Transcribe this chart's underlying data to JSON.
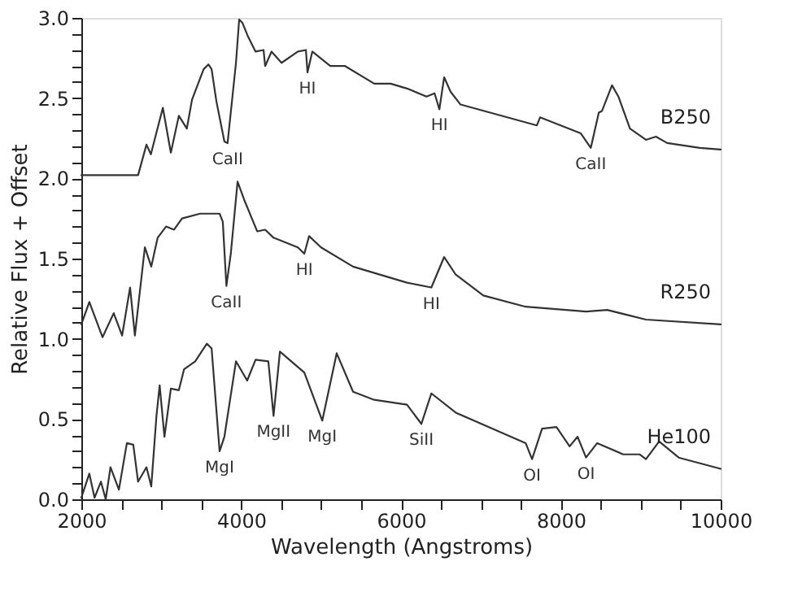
{
  "chart_data": {
    "type": "line",
    "xlabel": "Wavelength (Angstroms)",
    "ylabel": "Relative Flux + Offset",
    "xlim": [
      2000,
      10000
    ],
    "ylim": [
      0,
      3
    ],
    "xticks": [
      2000,
      {
        "value": 2500,
        "label": null
      },
      {
        "value": 3000,
        "label": null
      },
      {
        "value": 3500,
        "label": null
      },
      4000,
      {
        "value": 4500,
        "label": null
      },
      {
        "value": 5000,
        "label": null
      },
      {
        "value": 5500,
        "label": null
      },
      6000,
      {
        "value": 6500,
        "label": null
      },
      {
        "value": 7000,
        "label": null
      },
      {
        "value": 7500,
        "label": null
      },
      8000,
      {
        "value": 8500,
        "label": null
      },
      {
        "value": 9000,
        "label": null
      },
      {
        "value": 9500,
        "label": null
      },
      10000
    ],
    "yticks": [
      {
        "value": 0,
        "label": "0.0"
      },
      {
        "value": 0.1,
        "label": null
      },
      {
        "value": 0.2,
        "label": null
      },
      {
        "value": 0.3,
        "label": null
      },
      {
        "value": 0.4,
        "label": null
      },
      0.5,
      {
        "value": 0.6,
        "label": null
      },
      {
        "value": 0.7,
        "label": null
      },
      {
        "value": 0.8,
        "label": null
      },
      {
        "value": 0.9,
        "label": null
      },
      {
        "value": 1,
        "label": "1.0"
      },
      {
        "value": 1.1,
        "label": null
      },
      {
        "value": 1.2,
        "label": null
      },
      {
        "value": 1.3,
        "label": null
      },
      {
        "value": 1.4,
        "label": null
      },
      1.5,
      {
        "value": 1.6,
        "label": null
      },
      {
        "value": 1.7,
        "label": null
      },
      {
        "value": 1.8,
        "label": null
      },
      {
        "value": 1.9,
        "label": null
      },
      {
        "value": 2,
        "label": "2.0"
      },
      {
        "value": 2.1,
        "label": null
      },
      {
        "value": 2.2,
        "label": null
      },
      {
        "value": 2.3,
        "label": null
      },
      {
        "value": 2.4,
        "label": null
      },
      2.5,
      {
        "value": 2.6,
        "label": null
      },
      {
        "value": 2.7,
        "label": null
      },
      {
        "value": 2.8,
        "label": null
      },
      {
        "value": 2.9,
        "label": null
      },
      {
        "value": 3,
        "label": "3.0"
      }
    ],
    "grid": false,
    "marker": "none",
    "line_style": "solid",
    "series": [
      {
        "name": "B250",
        "color": "#333333",
        "x": [
          2000,
          2710,
          2815,
          2870,
          3020,
          3120,
          3220,
          3320,
          3385,
          3530,
          3590,
          3630,
          3690,
          3790,
          3830,
          3935,
          3975,
          4015,
          4080,
          4180,
          4280,
          4300,
          4380,
          4505,
          4710,
          4810,
          4830,
          4890,
          5115,
          5300,
          5665,
          5870,
          6075,
          6320,
          6420,
          6480,
          6540,
          6620,
          6745,
          7700,
          7740,
          8250,
          8375,
          8475,
          8515,
          8640,
          8720,
          8865,
          9065,
          9190,
          9330,
          9740,
          10000
        ],
        "values": [
          2.02,
          2.02,
          2.21,
          2.15,
          2.44,
          2.16,
          2.39,
          2.31,
          2.49,
          2.68,
          2.71,
          2.68,
          2.48,
          2.23,
          2.22,
          2.72,
          2.99,
          2.97,
          2.89,
          2.79,
          2.8,
          2.7,
          2.79,
          2.72,
          2.79,
          2.8,
          2.66,
          2.79,
          2.7,
          2.7,
          2.59,
          2.59,
          2.56,
          2.51,
          2.53,
          2.43,
          2.63,
          2.54,
          2.46,
          2.33,
          2.38,
          2.28,
          2.19,
          2.41,
          2.42,
          2.58,
          2.51,
          2.31,
          2.24,
          2.26,
          2.22,
          2.19,
          2.18
        ]
      },
      {
        "name": "R250",
        "color": "#333333",
        "x": [
          2000,
          2100,
          2265,
          2405,
          2510,
          2610,
          2670,
          2795,
          2875,
          2955,
          3060,
          3160,
          3260,
          3485,
          3730,
          3770,
          3815,
          3870,
          3955,
          4035,
          4200,
          4300,
          4405,
          4710,
          4790,
          4850,
          5000,
          5400,
          6075,
          6380,
          6540,
          6685,
          7030,
          7560,
          8315,
          8580,
          9065,
          10000
        ],
        "values": [
          1.09,
          1.23,
          1.01,
          1.16,
          1.02,
          1.32,
          1.02,
          1.57,
          1.45,
          1.63,
          1.7,
          1.68,
          1.75,
          1.78,
          1.78,
          1.73,
          1.33,
          1.53,
          1.98,
          1.87,
          1.67,
          1.68,
          1.63,
          1.57,
          1.53,
          1.64,
          1.57,
          1.45,
          1.35,
          1.32,
          1.51,
          1.4,
          1.27,
          1.2,
          1.17,
          1.18,
          1.12,
          1.09
        ]
      },
      {
        "name": "He100",
        "color": "#333333",
        "x": [
          2000,
          2100,
          2165,
          2245,
          2305,
          2365,
          2470,
          2570,
          2650,
          2710,
          2815,
          2875,
          2940,
          2980,
          3040,
          3120,
          3220,
          3285,
          3425,
          3570,
          3630,
          3730,
          3790,
          3935,
          4075,
          4180,
          4340,
          4405,
          4485,
          4790,
          5015,
          5195,
          5400,
          5665,
          6075,
          6255,
          6380,
          6685,
          7560,
          7640,
          7765,
          7945,
          8110,
          8210,
          8315,
          8455,
          8780,
          8985,
          9065,
          9230,
          9475,
          10000
        ],
        "values": [
          0.01,
          0.16,
          0.01,
          0.11,
          0.0,
          0.2,
          0.06,
          0.35,
          0.34,
          0.11,
          0.2,
          0.08,
          0.52,
          0.71,
          0.39,
          0.69,
          0.68,
          0.81,
          0.86,
          0.97,
          0.94,
          0.3,
          0.39,
          0.86,
          0.74,
          0.87,
          0.86,
          0.52,
          0.92,
          0.79,
          0.49,
          0.91,
          0.67,
          0.62,
          0.59,
          0.47,
          0.66,
          0.54,
          0.35,
          0.25,
          0.44,
          0.45,
          0.33,
          0.39,
          0.26,
          0.35,
          0.28,
          0.28,
          0.25,
          0.36,
          0.26,
          0.19
        ]
      }
    ],
    "annotations": [
      {
        "text": "CaII",
        "x": 3830,
        "y": 2.22
      },
      {
        "text": "HI",
        "x": 4830,
        "y": 2.66
      },
      {
        "text": "HI",
        "x": 6480,
        "y": 2.43
      },
      {
        "text": "CaII",
        "x": 8375,
        "y": 2.19
      },
      {
        "text": "CaII",
        "x": 3815,
        "y": 1.33
      },
      {
        "text": "HI",
        "x": 4790,
        "y": 1.53
      },
      {
        "text": "HI",
        "x": 6380,
        "y": 1.32
      },
      {
        "text": "MgI",
        "x": 3730,
        "y": 0.3
      },
      {
        "text": "MgII",
        "x": 4405,
        "y": 0.52
      },
      {
        "text": "MgI",
        "x": 5015,
        "y": 0.49
      },
      {
        "text": "SiII",
        "x": 6255,
        "y": 0.47
      },
      {
        "text": "OI",
        "x": 7640,
        "y": 0.25
      },
      {
        "text": "OI",
        "x": 8315,
        "y": 0.26
      }
    ]
  }
}
